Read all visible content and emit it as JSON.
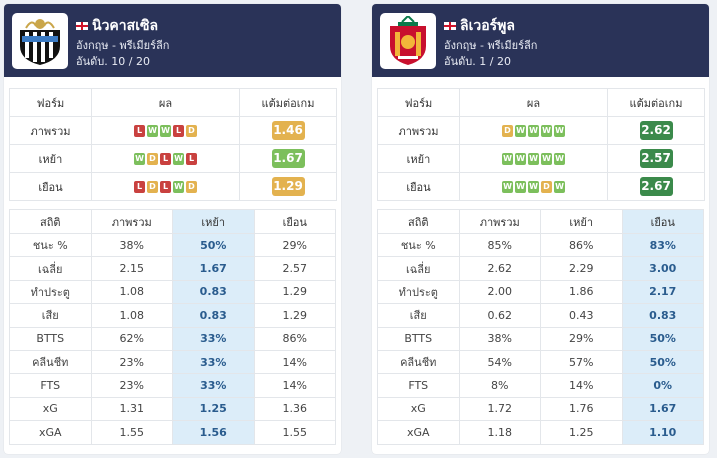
{
  "columns": {
    "form": "ฟอร์ม",
    "result": "ผล",
    "ppg": "แต้มต่อเกม",
    "stat": "สถิติ",
    "overall": "ภาพรวม",
    "home": "เหย้า",
    "away": "เยือน"
  },
  "teams": [
    {
      "name": "นิวคาสเซิล",
      "league": "อังกฤษ - พรีเมียร์ลีก",
      "rank": "อันดับ. 10 / 20",
      "logo": "newcastle-crest-icon",
      "highlight": "home",
      "form": [
        {
          "label": "ภาพรวม",
          "results": [
            "L",
            "W",
            "W",
            "L",
            "D"
          ],
          "ppg": "1.46",
          "level": "avg"
        },
        {
          "label": "เหย้า",
          "results": [
            "W",
            "D",
            "L",
            "W",
            "L"
          ],
          "ppg": "1.67",
          "level": "mid"
        },
        {
          "label": "เยือน",
          "results": [
            "L",
            "D",
            "L",
            "W",
            "D"
          ],
          "ppg": "1.29",
          "level": "avg"
        }
      ],
      "stats": [
        {
          "label": "ชนะ %",
          "overall": "38%",
          "home": "50%",
          "away": "29%"
        },
        {
          "label": "เฉลี่ย",
          "overall": "2.15",
          "home": "1.67",
          "away": "2.57"
        },
        {
          "label": "ทำประตู",
          "overall": "1.08",
          "home": "0.83",
          "away": "1.29"
        },
        {
          "label": "เสีย",
          "overall": "1.08",
          "home": "0.83",
          "away": "1.29"
        },
        {
          "label": "BTTS",
          "overall": "62%",
          "home": "33%",
          "away": "86%"
        },
        {
          "label": "คลีนชีท",
          "overall": "23%",
          "home": "33%",
          "away": "14%"
        },
        {
          "label": "FTS",
          "overall": "23%",
          "home": "33%",
          "away": "14%"
        },
        {
          "label": "xG",
          "overall": "1.31",
          "home": "1.25",
          "away": "1.36"
        },
        {
          "label": "xGA",
          "overall": "1.55",
          "home": "1.56",
          "away": "1.55"
        }
      ]
    },
    {
      "name": "ลิเวอร์พูล",
      "league": "อังกฤษ - พรีเมียร์ลีก",
      "rank": "อันดับ. 1 / 20",
      "logo": "liverpool-crest-icon",
      "highlight": "away",
      "form": [
        {
          "label": "ภาพรวม",
          "results": [
            "D",
            "W",
            "W",
            "W",
            "W"
          ],
          "ppg": "2.62",
          "level": "good"
        },
        {
          "label": "เหย้า",
          "results": [
            "W",
            "W",
            "W",
            "W",
            "W"
          ],
          "ppg": "2.57",
          "level": "good"
        },
        {
          "label": "เยือน",
          "results": [
            "W",
            "W",
            "W",
            "D",
            "W"
          ],
          "ppg": "2.67",
          "level": "good"
        }
      ],
      "stats": [
        {
          "label": "ชนะ %",
          "overall": "85%",
          "home": "86%",
          "away": "83%"
        },
        {
          "label": "เฉลี่ย",
          "overall": "2.62",
          "home": "2.29",
          "away": "3.00"
        },
        {
          "label": "ทำประตู",
          "overall": "2.00",
          "home": "1.86",
          "away": "2.17"
        },
        {
          "label": "เสีย",
          "overall": "0.62",
          "home": "0.43",
          "away": "0.83"
        },
        {
          "label": "BTTS",
          "overall": "38%",
          "home": "29%",
          "away": "50%"
        },
        {
          "label": "คลีนชีท",
          "overall": "54%",
          "home": "57%",
          "away": "50%"
        },
        {
          "label": "FTS",
          "overall": "8%",
          "home": "14%",
          "away": "0%"
        },
        {
          "label": "xG",
          "overall": "1.72",
          "home": "1.76",
          "away": "1.67"
        },
        {
          "label": "xGA",
          "overall": "1.18",
          "home": "1.25",
          "away": "1.10"
        }
      ]
    }
  ]
}
